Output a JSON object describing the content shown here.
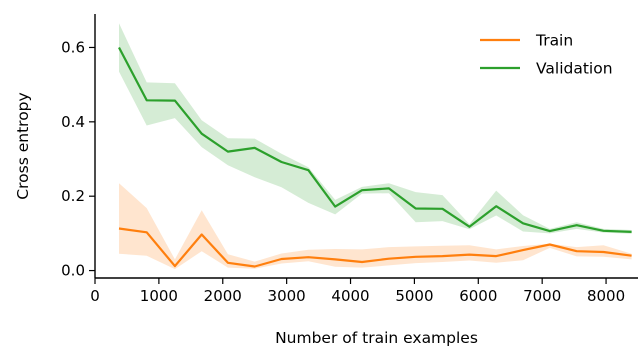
{
  "chart_data": {
    "type": "line",
    "xlabel": "Number of train examples",
    "ylabel": "Cross entropy",
    "xlim": [
      0,
      8500
    ],
    "ylim": [
      -0.02,
      0.69
    ],
    "xticks": [
      0,
      1000,
      2000,
      3000,
      4000,
      5000,
      6000,
      7000,
      8000
    ],
    "xtick_labels": [
      "0",
      "1000",
      "2000",
      "3000",
      "4000",
      "5000",
      "6000",
      "7000",
      "8000"
    ],
    "yticks": [
      0.0,
      0.2,
      0.4,
      0.6
    ],
    "ytick_labels": [
      "0.0",
      "0.2",
      "0.4",
      "0.6"
    ],
    "grid": false,
    "legend_position": "top-right",
    "x": [
      375,
      810,
      1250,
      1670,
      2080,
      2500,
      2920,
      3340,
      3760,
      4180,
      4600,
      5020,
      5440,
      5860,
      6280,
      6700,
      7120,
      7540,
      7960,
      8400
    ],
    "series": [
      {
        "name": "Train",
        "color": "#ff7f0e",
        "values": [
          0.113,
          0.103,
          0.012,
          0.097,
          0.021,
          0.011,
          0.031,
          0.036,
          0.03,
          0.023,
          0.032,
          0.037,
          0.039,
          0.043,
          0.039,
          0.055,
          0.07,
          0.052,
          0.05,
          0.04
        ],
        "band_upper": [
          0.235,
          0.168,
          0.03,
          0.162,
          0.044,
          0.024,
          0.046,
          0.056,
          0.058,
          0.057,
          0.063,
          0.065,
          0.067,
          0.068,
          0.057,
          0.066,
          0.072,
          0.063,
          0.068,
          0.045
        ],
        "band_lower": [
          0.045,
          0.04,
          0.004,
          0.052,
          0.008,
          0.005,
          0.019,
          0.025,
          0.01,
          0.008,
          0.014,
          0.02,
          0.023,
          0.027,
          0.021,
          0.028,
          0.061,
          0.038,
          0.037,
          0.03
        ]
      },
      {
        "name": "Validation",
        "color": "#2ca02c",
        "values": [
          0.6,
          0.458,
          0.457,
          0.368,
          0.32,
          0.33,
          0.292,
          0.27,
          0.172,
          0.216,
          0.221,
          0.167,
          0.166,
          0.118,
          0.173,
          0.127,
          0.106,
          0.122,
          0.107,
          0.104
        ],
        "band_upper": [
          0.665,
          0.506,
          0.504,
          0.404,
          0.356,
          0.355,
          0.314,
          0.278,
          0.19,
          0.225,
          0.235,
          0.211,
          0.203,
          0.125,
          0.215,
          0.149,
          0.112,
          0.13,
          0.112,
          0.109
        ],
        "band_lower": [
          0.535,
          0.39,
          0.41,
          0.332,
          0.283,
          0.251,
          0.224,
          0.182,
          0.151,
          0.207,
          0.208,
          0.13,
          0.133,
          0.111,
          0.148,
          0.105,
          0.1,
          0.112,
          0.102,
          0.099
        ]
      }
    ]
  }
}
